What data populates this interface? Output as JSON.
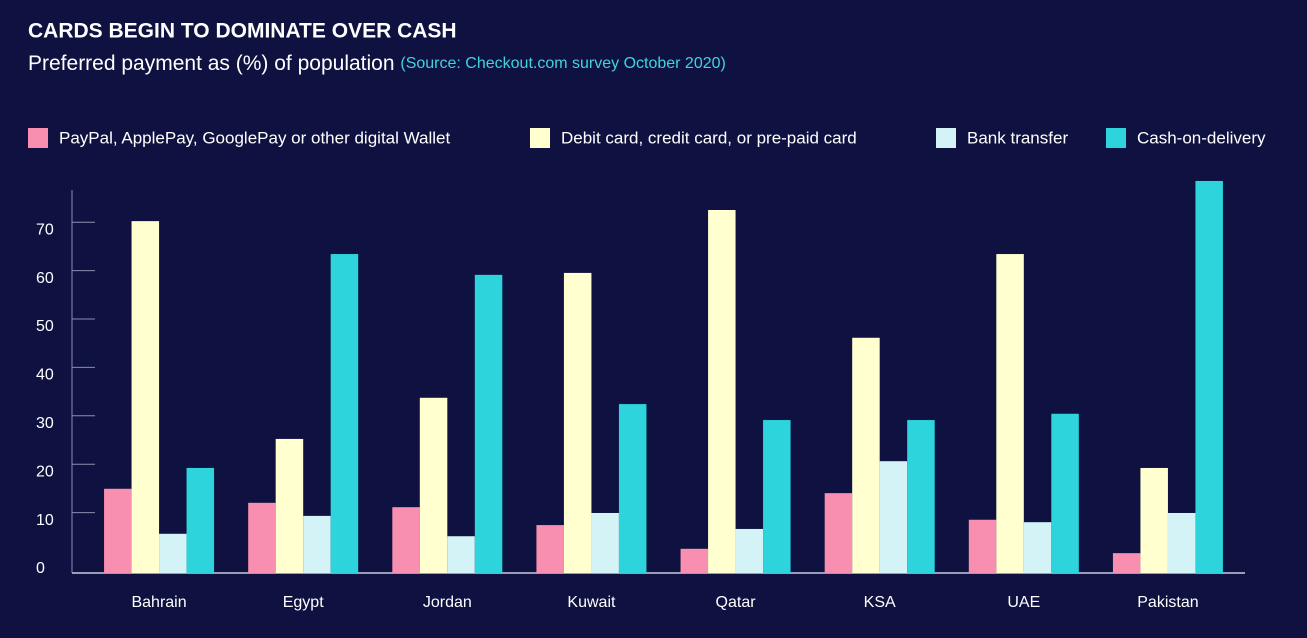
{
  "chart_data": {
    "type": "bar",
    "title": "CARDS BEGIN TO DOMINATE OVER CASH",
    "subtitle": "Preferred payment as (%) of population",
    "source": "(Source: Checkout.com survey October 2020)",
    "categories": [
      "Bahrain",
      "Egypt",
      "Jordan",
      "Kuwait",
      "Qatar",
      "KSA",
      "UAE",
      "Pakistan"
    ],
    "series": [
      {
        "name": "PayPal, ApplePay, GooglePay or other digital Wallet",
        "color": "#f98fb0",
        "values": [
          17.4,
          14.5,
          13.6,
          9.9,
          5.0,
          16.5,
          11.0,
          4.1
        ]
      },
      {
        "name": "Debit card, credit card, or pre-paid card",
        "color": "#ffffd0",
        "values": [
          72.7,
          27.7,
          36.2,
          62.0,
          75.0,
          48.6,
          65.9,
          21.7
        ]
      },
      {
        "name": "Bank transfer",
        "color": "#d4f3f7",
        "values": [
          8.1,
          11.8,
          7.6,
          12.4,
          9.1,
          23.1,
          10.5,
          12.4
        ]
      },
      {
        "name": "Cash-on-delivery",
        "color": "#2dd4dc",
        "values": [
          21.7,
          65.9,
          61.6,
          34.9,
          31.6,
          31.6,
          32.9,
          81.0
        ]
      }
    ],
    "ylim": [
      0,
      82
    ],
    "yticks": [
      0,
      10,
      20,
      30,
      40,
      50,
      60,
      70
    ],
    "legend": "top"
  }
}
